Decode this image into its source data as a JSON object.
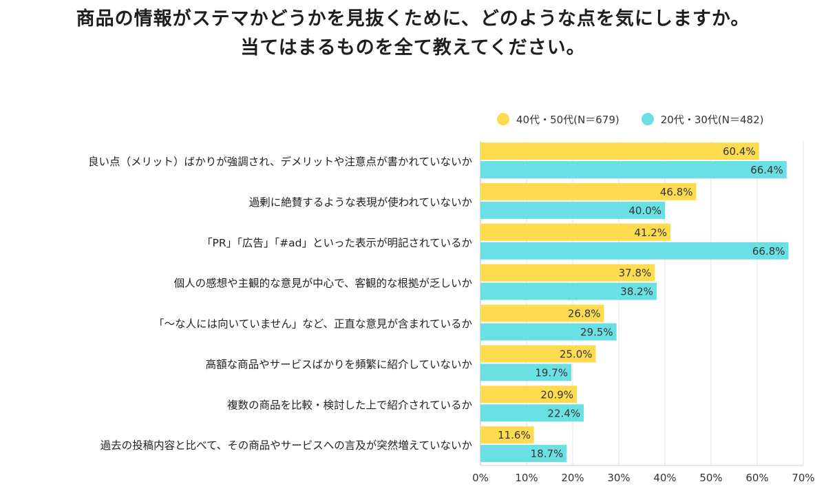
{
  "chart_data": {
    "type": "bar",
    "orientation": "horizontal",
    "title": "商品の情報がステマかどうかを見抜くために、どのような点を気にしますか。当てはまるものを全て教えてください。",
    "title_lines": [
      "商品の情報がステマかどうかを見抜くために、どのような点を気にしますか。",
      "当てはまるものを全て教えてください。"
    ],
    "categories": [
      "良い点（メリット）ばかりが強調され、デメリットや注意点が書かれていないか",
      "過剰に絶賛するような表現が使われていないか",
      "「PR」「広告」「#ad」といった表示が明記されているか",
      "個人の感想や主観的な意見が中心で、客観的な根拠が乏しいか",
      "「～な人には向いていません」など、正直な意見が含まれているか",
      "高額な商品やサービスばかりを頻繁に紹介していないか",
      "複数の商品を比較・検討した上で紹介されているか",
      "過去の投稿内容と比べて、その商品やサービスへの言及が突然増えていないか"
    ],
    "series": [
      {
        "name": "40代・50代(N＝679)",
        "color": "#fedb4f",
        "values": [
          60.4,
          46.8,
          41.2,
          37.8,
          26.8,
          25.0,
          20.9,
          11.6
        ]
      },
      {
        "name": "20代・30代(N＝482)",
        "color": "#6ae0e4",
        "values": [
          66.4,
          40.0,
          66.8,
          38.2,
          29.5,
          19.7,
          22.4,
          18.7
        ]
      }
    ],
    "value_labels": [
      [
        "60.4%",
        "46.8%",
        "41.2%",
        "37.8%",
        "26.8%",
        "25.0%",
        "20.9%",
        "11.6%"
      ],
      [
        "66.4%",
        "40.0%",
        "66.8%",
        "38.2%",
        "29.5%",
        "19.7%",
        "22.4%",
        "18.7%"
      ]
    ],
    "xlim": [
      0,
      70
    ],
    "xticks": [
      0,
      10,
      20,
      30,
      40,
      50,
      60,
      70
    ],
    "xtick_labels": [
      "0%",
      "10%",
      "20%",
      "30%",
      "40%",
      "50%",
      "60%",
      "70%"
    ],
    "xlabel": "",
    "ylabel": "",
    "grid": true,
    "legend_position": "top-right"
  }
}
